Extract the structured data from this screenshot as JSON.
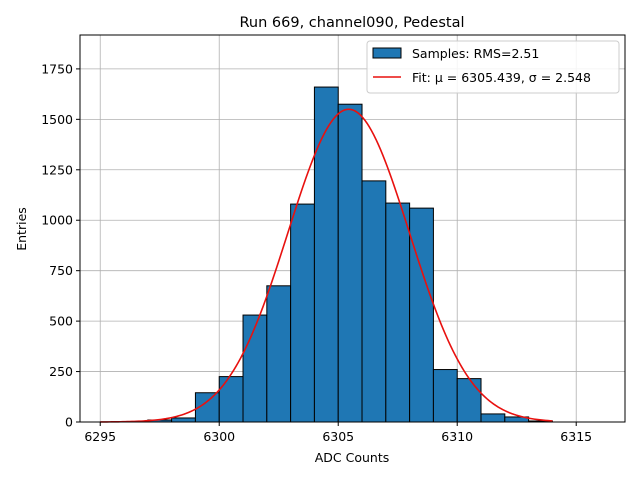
{
  "chart_data": {
    "type": "bar",
    "title": "Run 669, channel090, Pedestal",
    "xlabel": "ADC Counts",
    "ylabel": "Entries",
    "xlim": [
      6294.15,
      6317.05
    ],
    "ylim": [
      0,
      1918
    ],
    "grid": true,
    "legend_position": "top-right",
    "x_ticks": [
      6295,
      6300,
      6305,
      6310,
      6315
    ],
    "y_ticks": [
      0,
      250,
      500,
      750,
      1000,
      1250,
      1500,
      1750
    ],
    "histogram": {
      "name": "Samples: RMS=2.51",
      "color": "#1f77b4",
      "edge_color": "#000000",
      "bin_edges": [
        6295,
        6296,
        6297,
        6298,
        6299,
        6300,
        6301,
        6302,
        6303,
        6304,
        6305,
        6306,
        6307,
        6308,
        6309,
        6310,
        6311,
        6312,
        6313,
        6314,
        6315,
        6316
      ],
      "counts": [
        0,
        0,
        10,
        20,
        145,
        225,
        530,
        675,
        1080,
        1660,
        1575,
        1195,
        1085,
        1060,
        260,
        215,
        40,
        25,
        5,
        0,
        0
      ]
    },
    "fit": {
      "name": "Fit: μ = 6305.439, σ = 2.548",
      "mu": 6305.439,
      "sigma": 2.548,
      "amplitude": 1550,
      "x_range": [
        6295,
        6314
      ],
      "color": "#e8110f"
    }
  }
}
